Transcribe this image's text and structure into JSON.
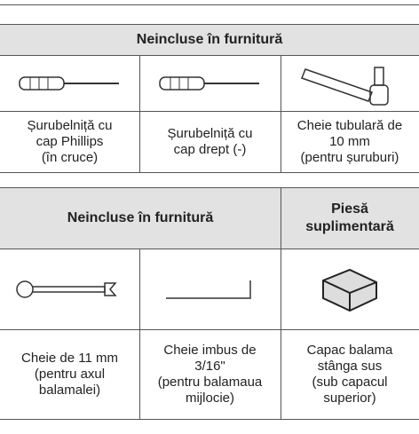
{
  "table1": {
    "header": "Neincluse în furnitură",
    "items": [
      {
        "lines": [
          "Șurubelniță cu",
          "cap Phillips",
          "(în cruce)"
        ]
      },
      {
        "lines": [
          "Șurubelniță cu",
          "cap drept (-)"
        ]
      },
      {
        "lines": [
          "Cheie tubulară de",
          "10 mm",
          "(pentru șuruburi)"
        ]
      }
    ]
  },
  "table2": {
    "headers": [
      {
        "lines": [
          "Neincluse în furnitură"
        ]
      },
      {
        "lines": [
          "Piesă",
          "suplimentară"
        ]
      }
    ],
    "items": [
      {
        "lines": [
          "Cheie de 11 mm",
          "(pentru axul",
          "balamalei)"
        ]
      },
      {
        "lines": [
          "Cheie imbus de",
          "3/16\"",
          "(pentru balamaua",
          "mijlocie)"
        ]
      },
      {
        "lines": [
          "Capac balama",
          "stânga sus",
          "(sub capacul",
          "superior)"
        ]
      }
    ]
  }
}
